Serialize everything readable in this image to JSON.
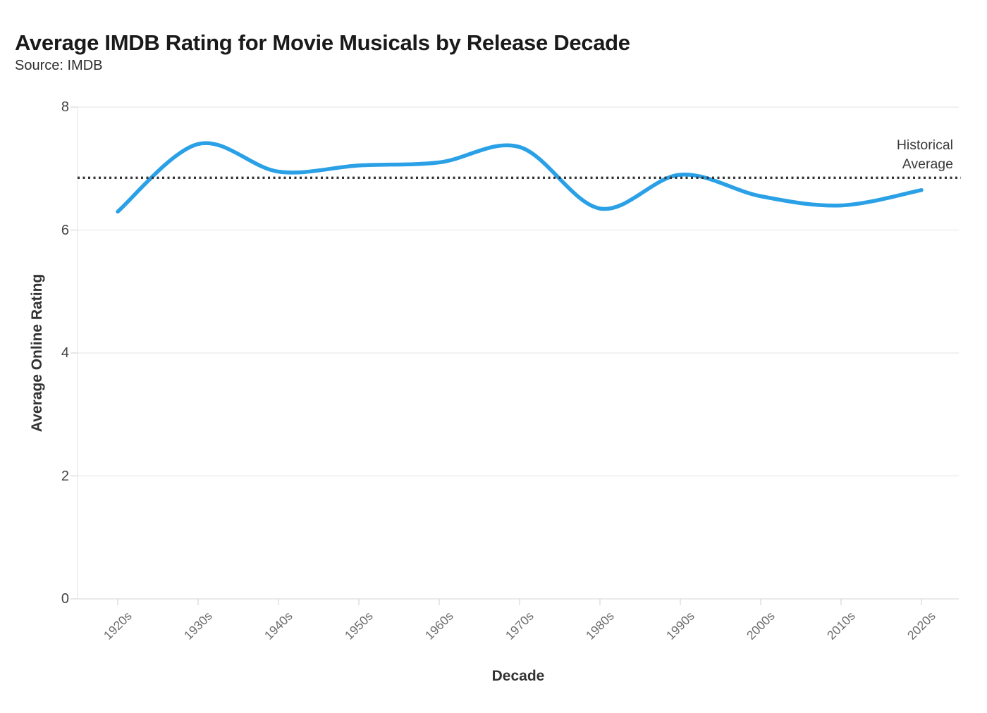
{
  "header": {
    "title": "Average IMDB Rating for Movie Musicals by Release Decade",
    "source": "Source: IMDB"
  },
  "chart_data": {
    "type": "line",
    "title": "Average IMDB Rating for Movie Musicals by Release Decade",
    "source": "Source: IMDB",
    "xlabel": "Decade",
    "ylabel": "Average Online Rating",
    "categories": [
      "1920s",
      "1930s",
      "1940s",
      "1950s",
      "1960s",
      "1970s",
      "1980s",
      "1990s",
      "2000s",
      "2010s",
      "2020s"
    ],
    "values": [
      6.3,
      7.4,
      6.95,
      7.05,
      7.1,
      7.35,
      6.35,
      6.9,
      6.55,
      6.4,
      6.65
    ],
    "ylim": [
      0,
      8
    ],
    "yticks": [
      0,
      2,
      4,
      6,
      8
    ],
    "grid": "horizontal",
    "legend": "none",
    "reference_line": {
      "label": "Historical Average",
      "value": 6.85,
      "style": "dotted",
      "color": "#333333"
    },
    "line_color": "#2aa0e6",
    "grid_color": "#e3e3e3",
    "axis_tick_color": "#cfcfcf"
  }
}
